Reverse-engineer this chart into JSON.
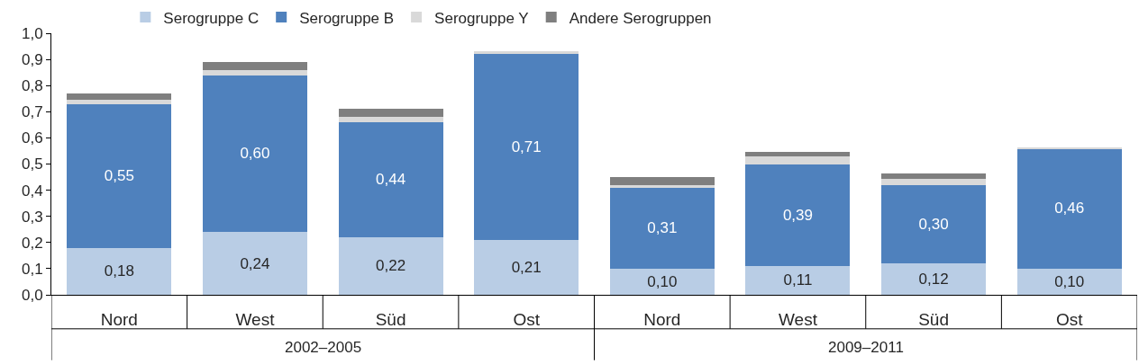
{
  "chart_data": {
    "type": "bar",
    "stacked": true,
    "categories": [
      "Nord",
      "West",
      "Süd",
      "Ost",
      "Nord",
      "West",
      "Süd",
      "Ost"
    ],
    "series": [
      {
        "name": "Serogruppe C",
        "color": "#b9cde5",
        "values": [
          0.18,
          0.24,
          0.22,
          0.21,
          0.1,
          0.11,
          0.12,
          0.1
        ],
        "value_labels": [
          "0,18",
          "0,24",
          "0,22",
          "0,21",
          "0,10",
          "0,11",
          "0,12",
          "0,10"
        ]
      },
      {
        "name": "Serogruppe B",
        "color": "#4f81bd",
        "values": [
          0.55,
          0.6,
          0.44,
          0.71,
          0.31,
          0.39,
          0.3,
          0.46
        ],
        "value_labels": [
          "0,55",
          "0,60",
          "0,44",
          "0,71",
          "0,31",
          "0,39",
          "0,30",
          "0,46"
        ]
      },
      {
        "name": "Serogruppe Y",
        "color": "#d9d9d9",
        "values": [
          0.015,
          0.02,
          0.02,
          0.01,
          0.01,
          0.03,
          0.025,
          0.005
        ]
      },
      {
        "name": "Andere Serogruppen",
        "color": "#7f7f7f",
        "values": [
          0.025,
          0.03,
          0.03,
          0,
          0.03,
          0.015,
          0.02,
          0
        ]
      }
    ],
    "annotations": [
      "2002–2005",
      "2009–2011"
    ],
    "ylim": [
      0,
      1.0
    ],
    "yticks": [
      {
        "value": 0,
        "label": "0,0"
      },
      {
        "value": 0.1,
        "label": "0,1"
      },
      {
        "value": 0.2,
        "label": "0,2"
      },
      {
        "value": 0.3,
        "label": "0,3"
      },
      {
        "value": 0.4,
        "label": "0,4"
      },
      {
        "value": 0.5,
        "label": "0,5"
      },
      {
        "value": 0.6,
        "label": "0,6"
      },
      {
        "value": 0.7,
        "label": "0,7"
      },
      {
        "value": 0.8,
        "label": "0,8"
      },
      {
        "value": 0.9,
        "label": "0,9"
      },
      {
        "value": 1.0,
        "label": "1,0"
      }
    ],
    "legend": "top"
  }
}
